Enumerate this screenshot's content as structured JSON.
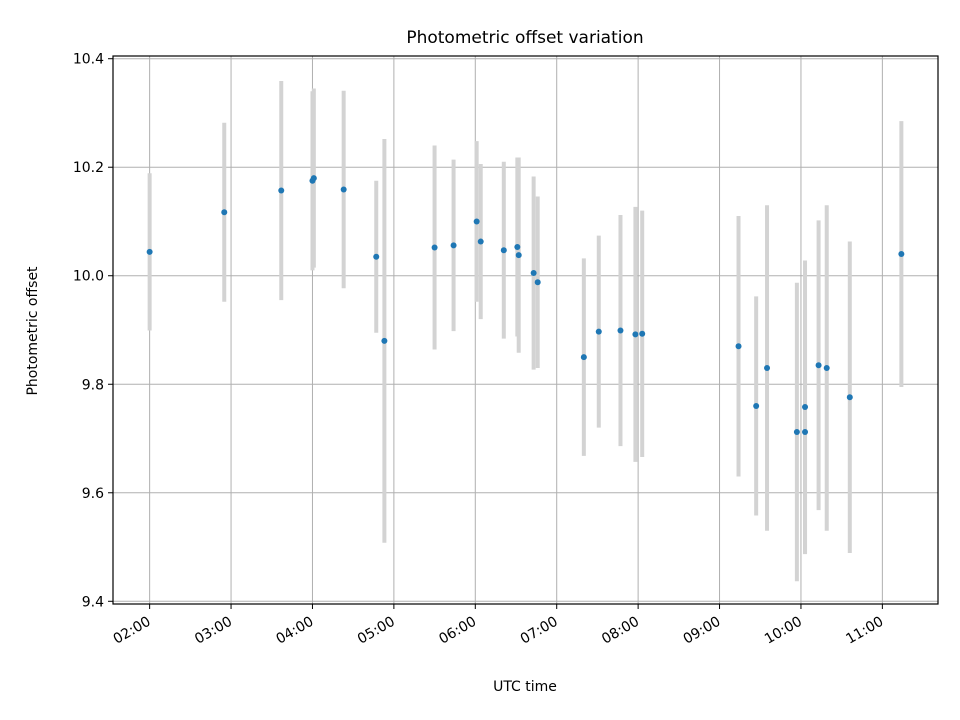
{
  "chart_data": {
    "type": "scatter",
    "title": "Photometric offset variation",
    "xlabel": "UTC time",
    "ylabel": "Photometric offset",
    "x_ticks": [
      "02:00",
      "03:00",
      "04:00",
      "05:00",
      "06:00",
      "07:00",
      "08:00",
      "09:00",
      "10:00",
      "11:00"
    ],
    "y_ticks": [
      "9.4",
      "9.6",
      "9.8",
      "10.0",
      "10.2",
      "10.4"
    ],
    "xlim": [
      "01:33",
      "11:41"
    ],
    "ylim": [
      9.395,
      10.405
    ],
    "grid": true,
    "colors": {
      "points": "#1f77b4",
      "errorbars": "#d3d3d3",
      "grid": "#b0b0b0"
    },
    "points": [
      {
        "t": "02:00",
        "y": 10.044,
        "err": 0.145
      },
      {
        "t": "02:55",
        "y": 10.117,
        "err": 0.165
      },
      {
        "t": "03:37",
        "y": 10.157,
        "err": 0.202
      },
      {
        "t": "04:00",
        "y": 10.175,
        "err": 0.165
      },
      {
        "t": "04:01",
        "y": 10.18,
        "err": 0.165
      },
      {
        "t": "04:23",
        "y": 10.159,
        "err": 0.182
      },
      {
        "t": "04:47",
        "y": 10.035,
        "err": 0.14
      },
      {
        "t": "04:53",
        "y": 9.88,
        "err": 0.372
      },
      {
        "t": "05:30",
        "y": 10.052,
        "err": 0.188
      },
      {
        "t": "05:44",
        "y": 10.056,
        "err": 0.158
      },
      {
        "t": "06:01",
        "y": 10.1,
        "err": 0.148
      },
      {
        "t": "06:04",
        "y": 10.063,
        "err": 0.143
      },
      {
        "t": "06:21",
        "y": 10.047,
        "err": 0.163
      },
      {
        "t": "06:31",
        "y": 10.053,
        "err": 0.165
      },
      {
        "t": "06:32",
        "y": 10.038,
        "err": 0.18
      },
      {
        "t": "06:43",
        "y": 10.005,
        "err": 0.178
      },
      {
        "t": "06:46",
        "y": 9.988,
        "err": 0.158
      },
      {
        "t": "07:20",
        "y": 9.85,
        "err": 0.182
      },
      {
        "t": "07:31",
        "y": 9.897,
        "err": 0.177
      },
      {
        "t": "07:47",
        "y": 9.899,
        "err": 0.213
      },
      {
        "t": "07:58",
        "y": 9.892,
        "err": 0.235
      },
      {
        "t": "08:03",
        "y": 9.893,
        "err": 0.227
      },
      {
        "t": "09:14",
        "y": 9.87,
        "err": 0.24
      },
      {
        "t": "09:27",
        "y": 9.76,
        "err": 0.202
      },
      {
        "t": "09:35",
        "y": 9.83,
        "err": 0.3
      },
      {
        "t": "09:57",
        "y": 9.712,
        "err": 0.275
      },
      {
        "t": "10:03",
        "y": 9.712,
        "err": 0.225
      },
      {
        "t": "10:03",
        "y": 9.758,
        "err": 0.27
      },
      {
        "t": "10:13",
        "y": 9.835,
        "err": 0.267
      },
      {
        "t": "10:19",
        "y": 9.83,
        "err": 0.3
      },
      {
        "t": "10:36",
        "y": 9.776,
        "err": 0.287
      },
      {
        "t": "11:14",
        "y": 10.04,
        "err": 0.245
      }
    ]
  }
}
